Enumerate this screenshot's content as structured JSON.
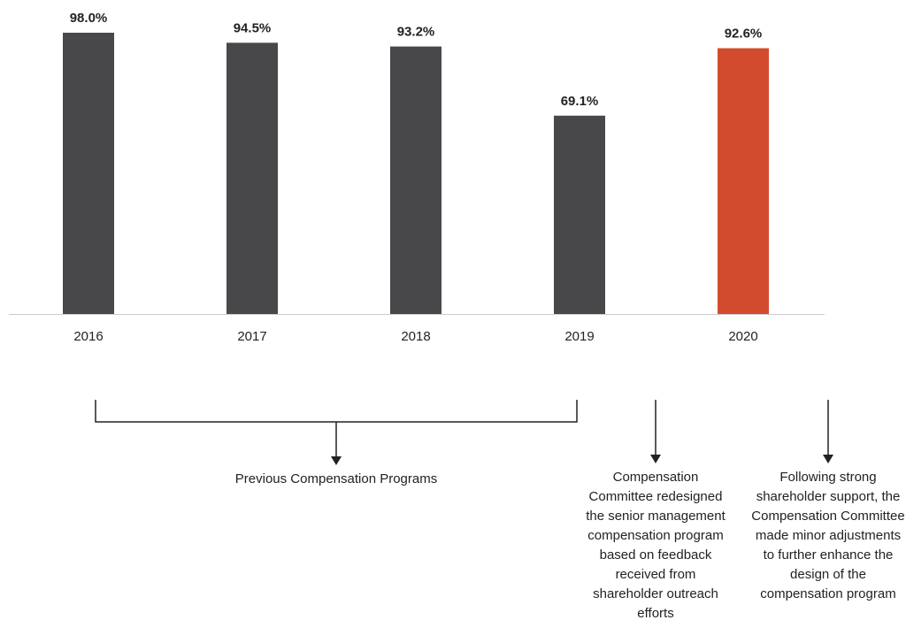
{
  "chart_data": {
    "type": "bar",
    "categories": [
      "2016",
      "2017",
      "2018",
      "2019",
      "2020"
    ],
    "values": [
      98.0,
      94.5,
      93.2,
      69.1,
      92.6
    ],
    "value_labels": [
      "98.0%",
      "94.5%",
      "93.2%",
      "69.1%",
      "92.6%"
    ],
    "colors": [
      "#48484a",
      "#48484a",
      "#48484a",
      "#48484a",
      "#d24b2e"
    ],
    "ylim": [
      0,
      100
    ],
    "annotations": [
      "Previous Compensation Programs",
      "Compensation Committee redesigned the senior management compensation program based on feedback received from shareholder outreach efforts",
      "Following strong shareholder support, the Compensation Committee made minor adjustments to further enhance the design of the compensation program"
    ]
  }
}
